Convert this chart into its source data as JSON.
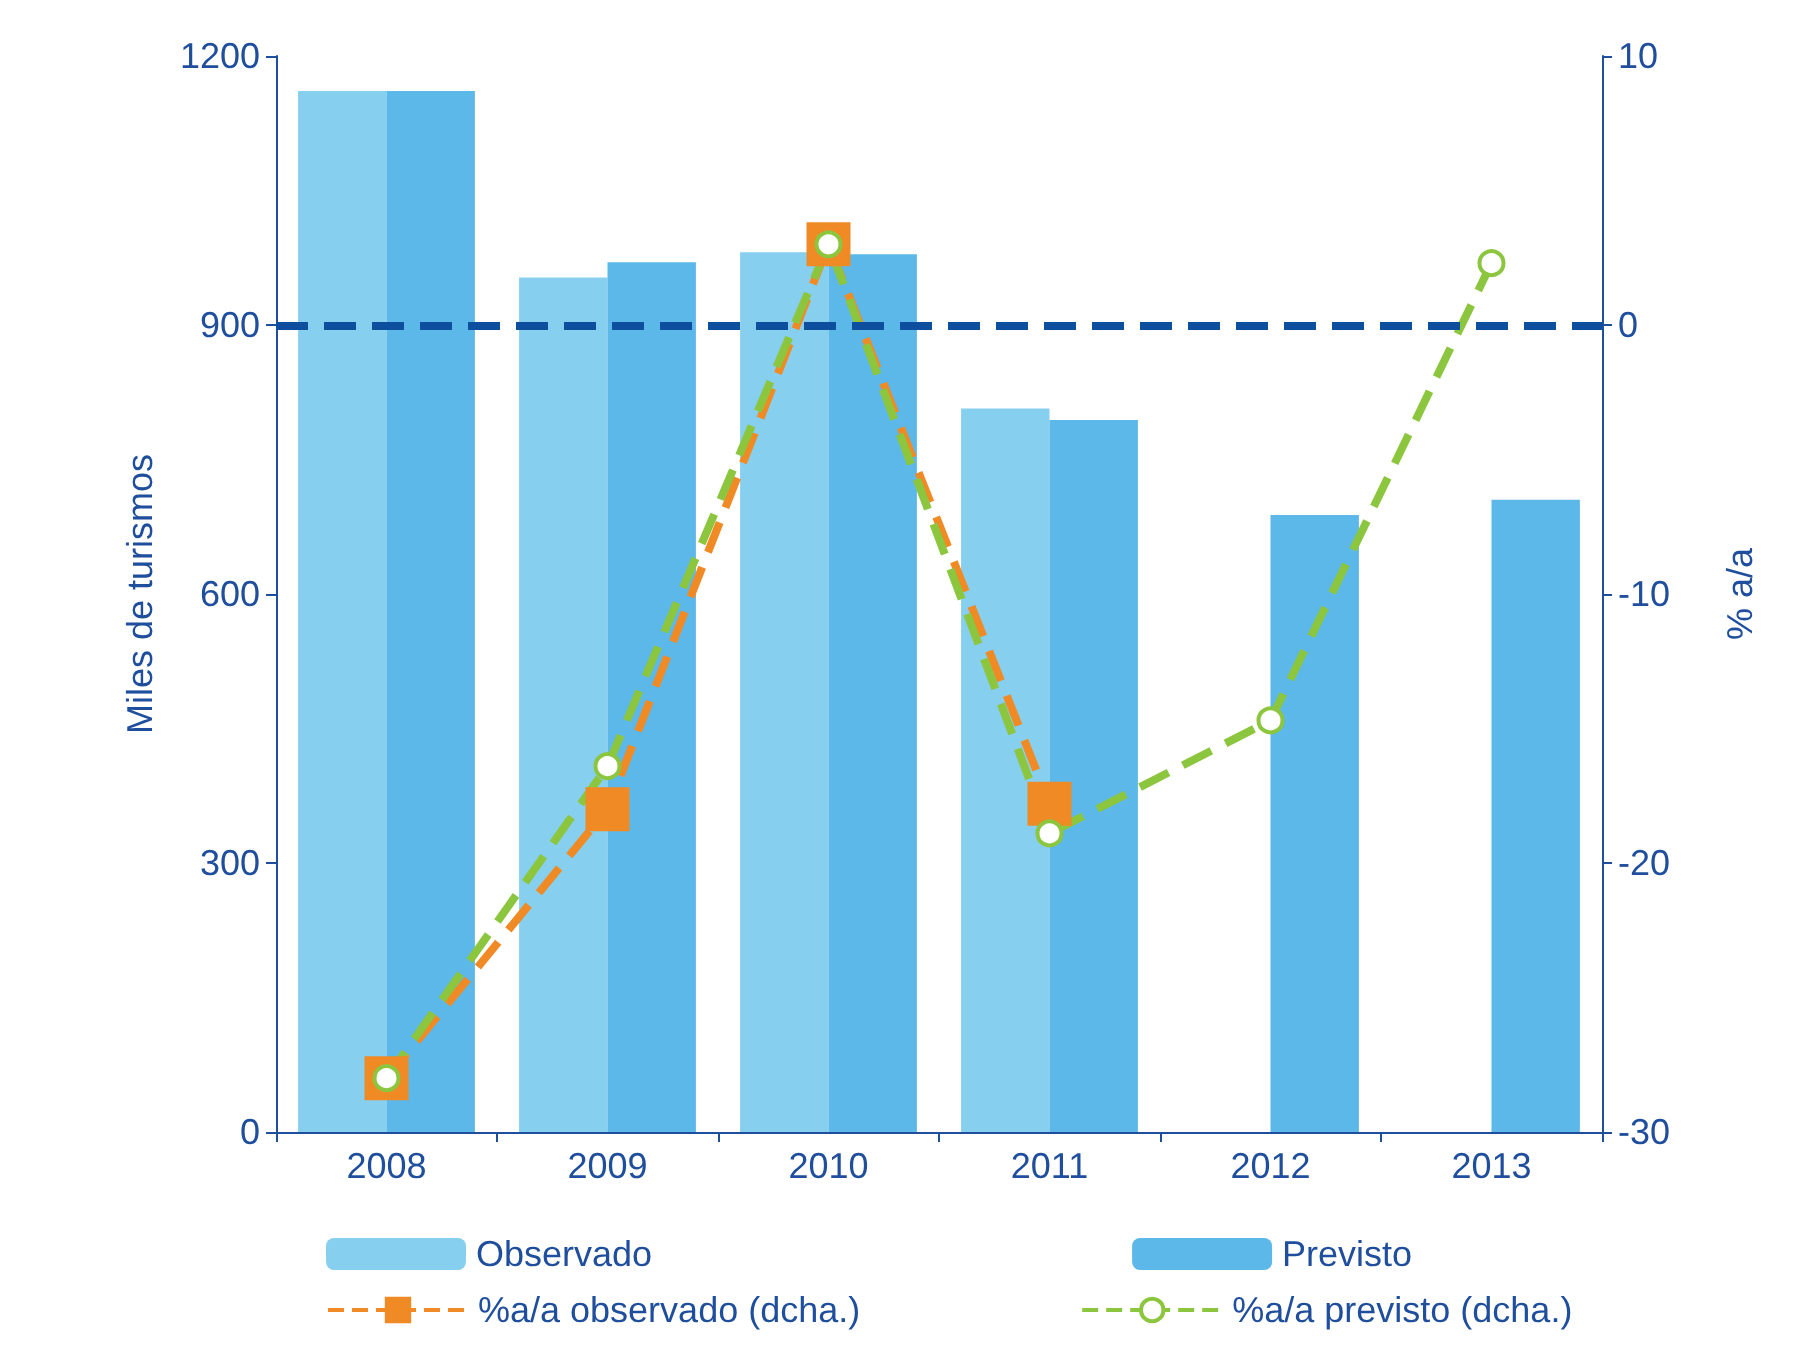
{
  "chart_data": {
    "type": "bar",
    "ylabel": "Miles de turismos",
    "y2label": "% a/a",
    "categories": [
      "2008",
      "2009",
      "2010",
      "2011",
      "2012",
      "2013"
    ],
    "series": [
      {
        "name": "Observado",
        "color": "#87cfee",
        "values": [
          1161,
          953,
          981,
          807,
          null,
          null
        ]
      },
      {
        "name": "Previsto",
        "color": "#5bb8e8",
        "values": [
          1161,
          970,
          979,
          794,
          688,
          705
        ]
      },
      {
        "name": "%a/a observado (dcha.)",
        "type": "line",
        "axis": "y2",
        "color": "#f08a24",
        "marker": "square",
        "line_style": "dashed",
        "values": [
          -28.0,
          -18.0,
          3.0,
          -17.8,
          null,
          null
        ]
      },
      {
        "name": "%a/a previsto (dcha.)",
        "type": "line",
        "axis": "y2",
        "color": "#8cc63f",
        "marker": "emptyCircle",
        "line_style": "dashed",
        "values": [
          -28.0,
          -16.4,
          3.0,
          -18.9,
          -14.7,
          2.3
        ]
      }
    ],
    "ylim": [
      0,
      1200
    ],
    "yticks": [
      0,
      300,
      600,
      900,
      1200
    ],
    "y2lim": [
      -30,
      10
    ],
    "y2ticks": [
      -30,
      -20,
      -10,
      0,
      10
    ],
    "ref_lines": [
      {
        "axis": "y2",
        "value": 0,
        "color": "#0d4f9e",
        "line_style": "dashed"
      }
    ],
    "grid": false,
    "legend": "bottom"
  }
}
